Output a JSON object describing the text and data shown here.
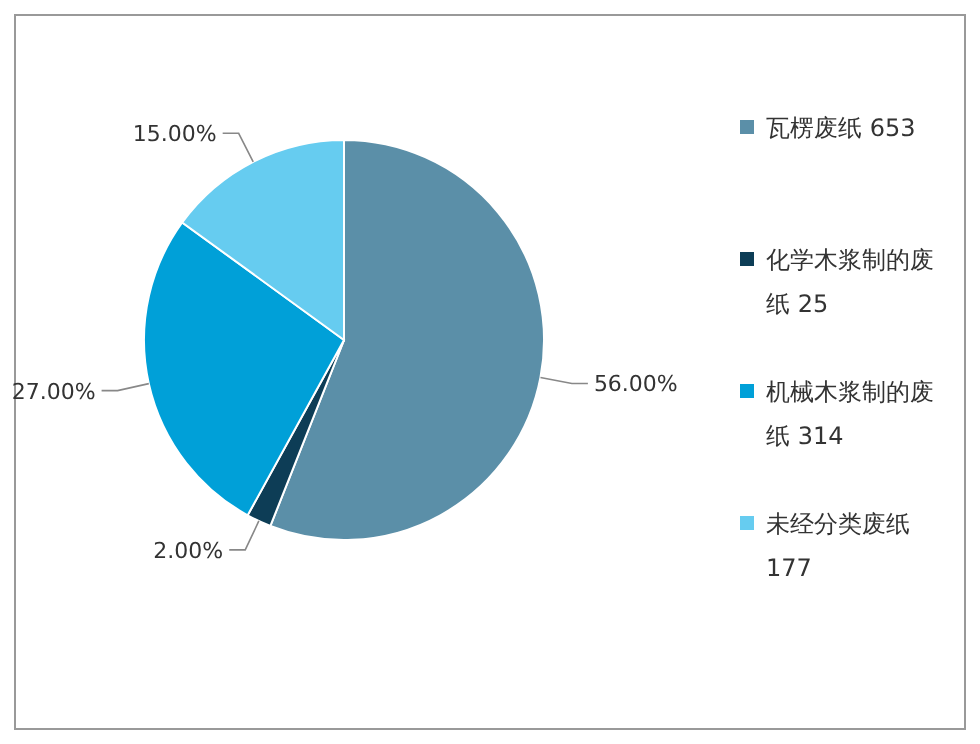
{
  "chart_data": {
    "type": "pie",
    "categories": [
      "瓦楞废纸 653",
      "化学木浆制的废纸 25",
      "机械木浆制的废纸 314",
      "未经分类废纸 177"
    ],
    "values": [
      56,
      2,
      27,
      15
    ],
    "value_labels": [
      "56.00%",
      "2.00%",
      "27.00%",
      "15.00%"
    ],
    "colors": [
      "#5b8fa8",
      "#0d3d56",
      "#00a0d8",
      "#66ccf0"
    ],
    "legend": "right"
  }
}
